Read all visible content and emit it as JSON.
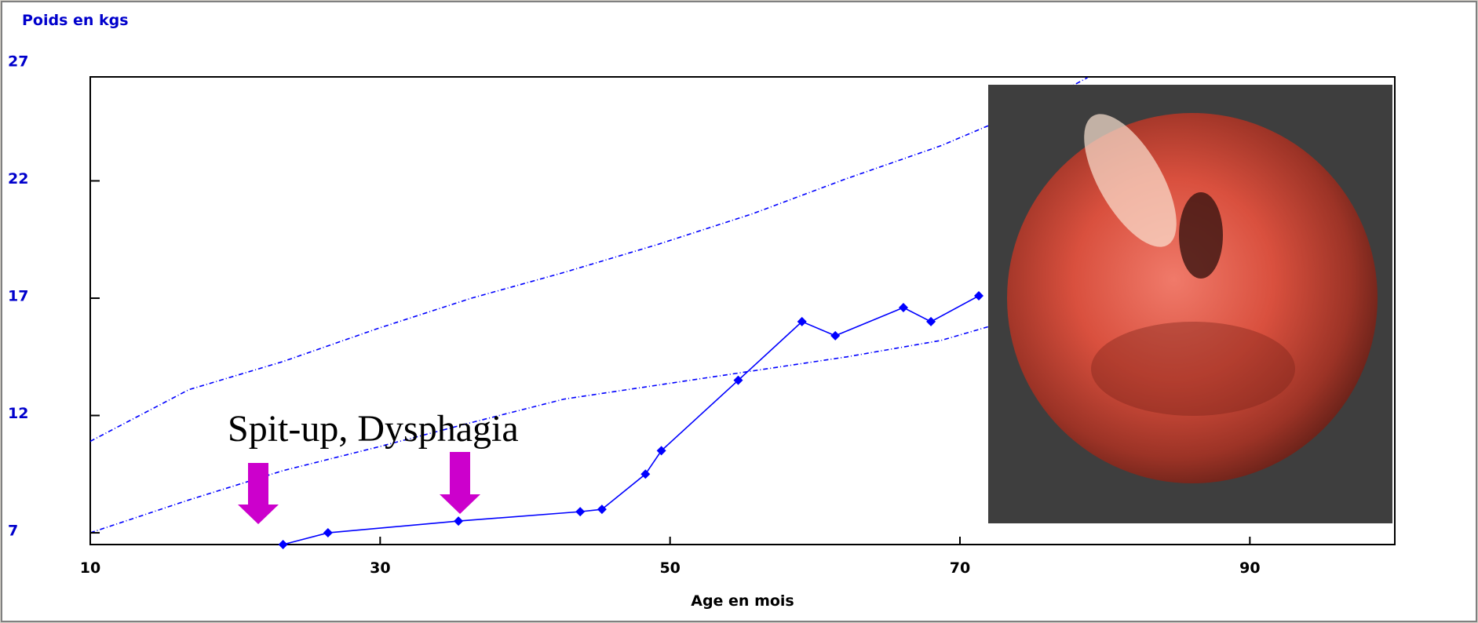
{
  "chart_data": {
    "type": "line",
    "ylabel": "Poids en kgs",
    "xlabel": "Age en mois",
    "annotation": "Spit-up, Dysphagia",
    "xlim": [
      10,
      100
    ],
    "xticks": [
      10,
      30,
      50,
      70,
      90
    ],
    "ylim": [
      6.5,
      27
    ],
    "yticks": [
      7,
      12,
      17,
      22,
      27
    ],
    "series": [
      {
        "color": "#0000ff",
        "style": "dashed",
        "x": [
          10,
          16.8,
          23.3,
          29.8,
          36.3,
          42.7,
          49.2,
          55.7,
          62.2,
          68.7,
          75.2,
          78.8
        ],
        "values": [
          10.9,
          13.1,
          14.3,
          15.7,
          17.0,
          18.1,
          19.3,
          20.6,
          22.1,
          23.5,
          25.2,
          26.4
        ]
      },
      {
        "color": "#0000ff",
        "style": "dashed",
        "x": [
          10,
          16.8,
          23.3,
          29.8,
          36.3,
          42.7,
          49.2,
          55.7,
          62.2,
          68.7,
          72.6,
          99.8
        ],
        "values": [
          7.0,
          8.4,
          9.65,
          10.65,
          11.7,
          12.7,
          13.3,
          13.9,
          14.5,
          15.2,
          15.9,
          19.9
        ]
      },
      {
        "color": "#0000ff",
        "style": "solid",
        "marker": "diamond",
        "x": [
          23.3,
          26.4,
          35.4,
          43.8,
          45.3,
          48.3,
          49.4,
          54.7,
          59.1,
          61.4,
          66.1,
          68.0,
          71.3
        ],
        "values": [
          6.5,
          7.0,
          7.5,
          7.9,
          8.0,
          9.5,
          10.5,
          13.5,
          16.0,
          15.4,
          16.6,
          16.0,
          17.1
        ]
      }
    ]
  }
}
